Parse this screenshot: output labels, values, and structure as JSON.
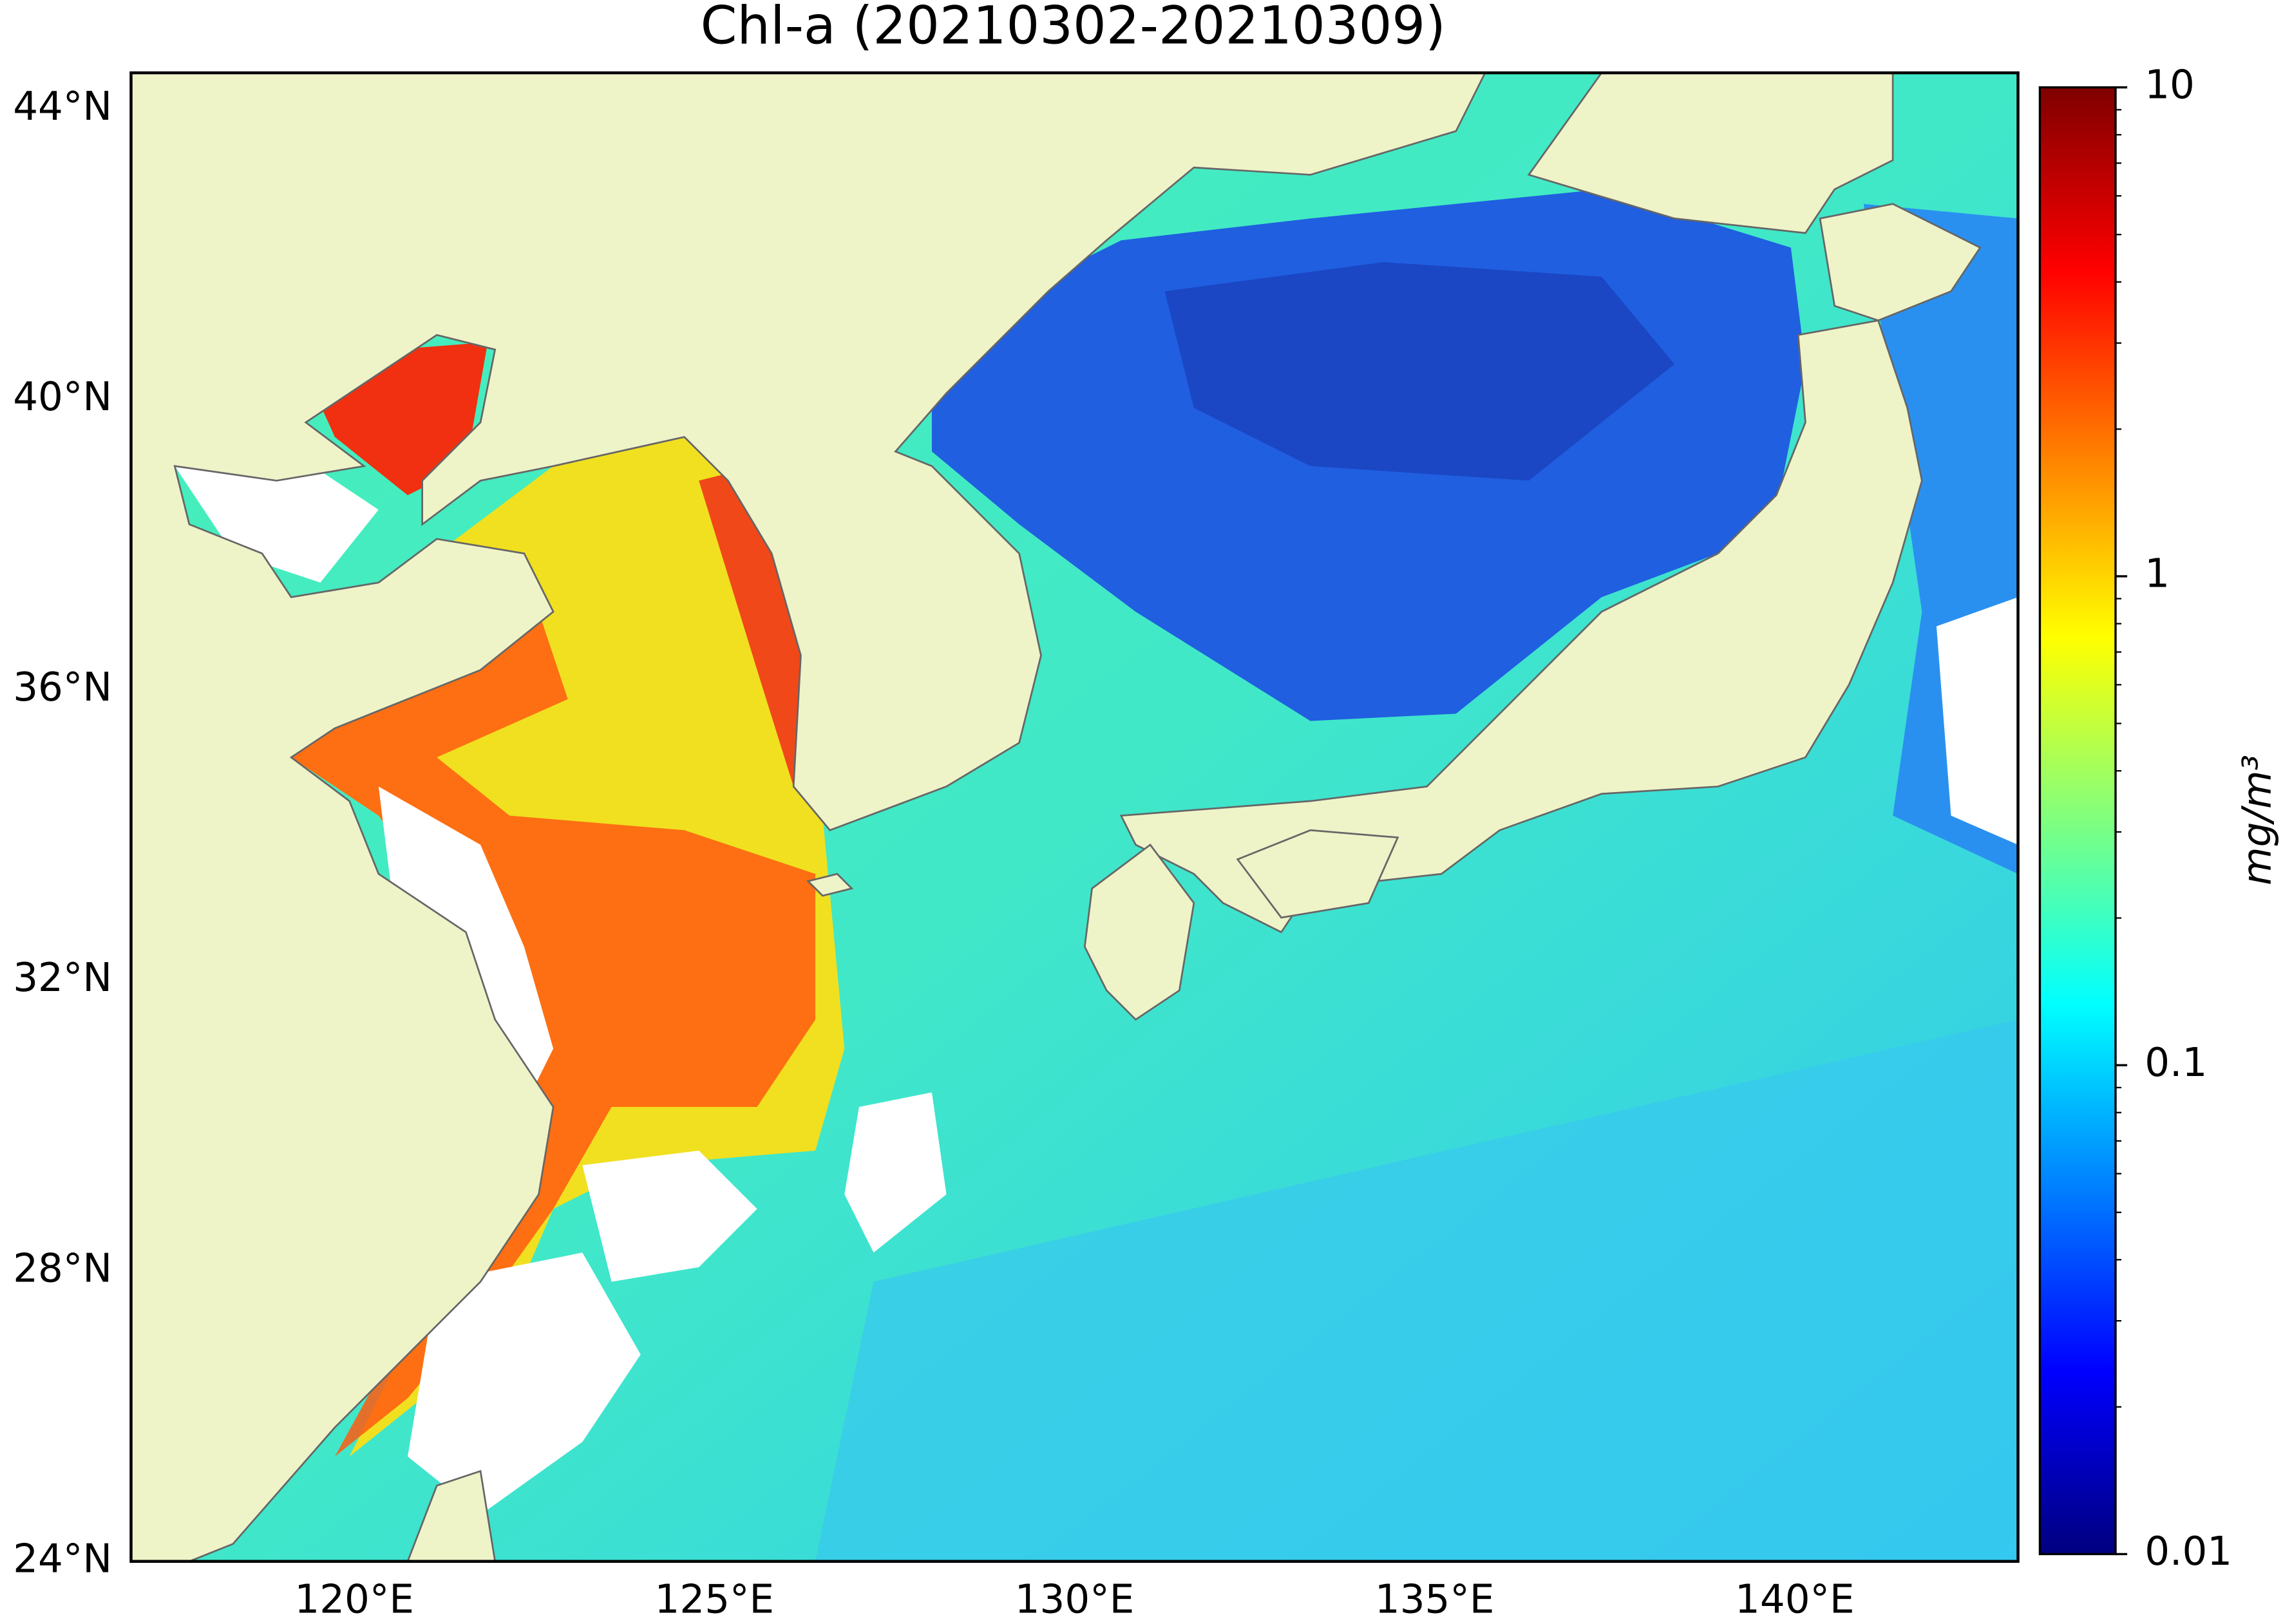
{
  "title": "Chl-a (20210302-20210309)",
  "map": {
    "xlim": [
      116.9,
      143.1
    ],
    "ylim": [
      24,
      44.5
    ],
    "xticks": [
      {
        "value": 120,
        "label": "120°E"
      },
      {
        "value": 125,
        "label": "125°E"
      },
      {
        "value": 130,
        "label": "130°E"
      },
      {
        "value": 135,
        "label": "135°E"
      },
      {
        "value": 140,
        "label": "140°E"
      }
    ],
    "yticks": [
      {
        "value": 24,
        "label": "24°N"
      },
      {
        "value": 28,
        "label": "28°N"
      },
      {
        "value": 32,
        "label": "32°N"
      },
      {
        "value": 36,
        "label": "36°N"
      },
      {
        "value": 40,
        "label": "40°N"
      },
      {
        "value": 44,
        "label": "44°N"
      }
    ],
    "land_color": "#eff3c8"
  },
  "colorbar": {
    "label": "mg/m³",
    "colormap": "jet",
    "log": true,
    "lim": [
      0.01,
      10
    ],
    "ticks": [
      0.01,
      0.1,
      1,
      10
    ]
  }
}
